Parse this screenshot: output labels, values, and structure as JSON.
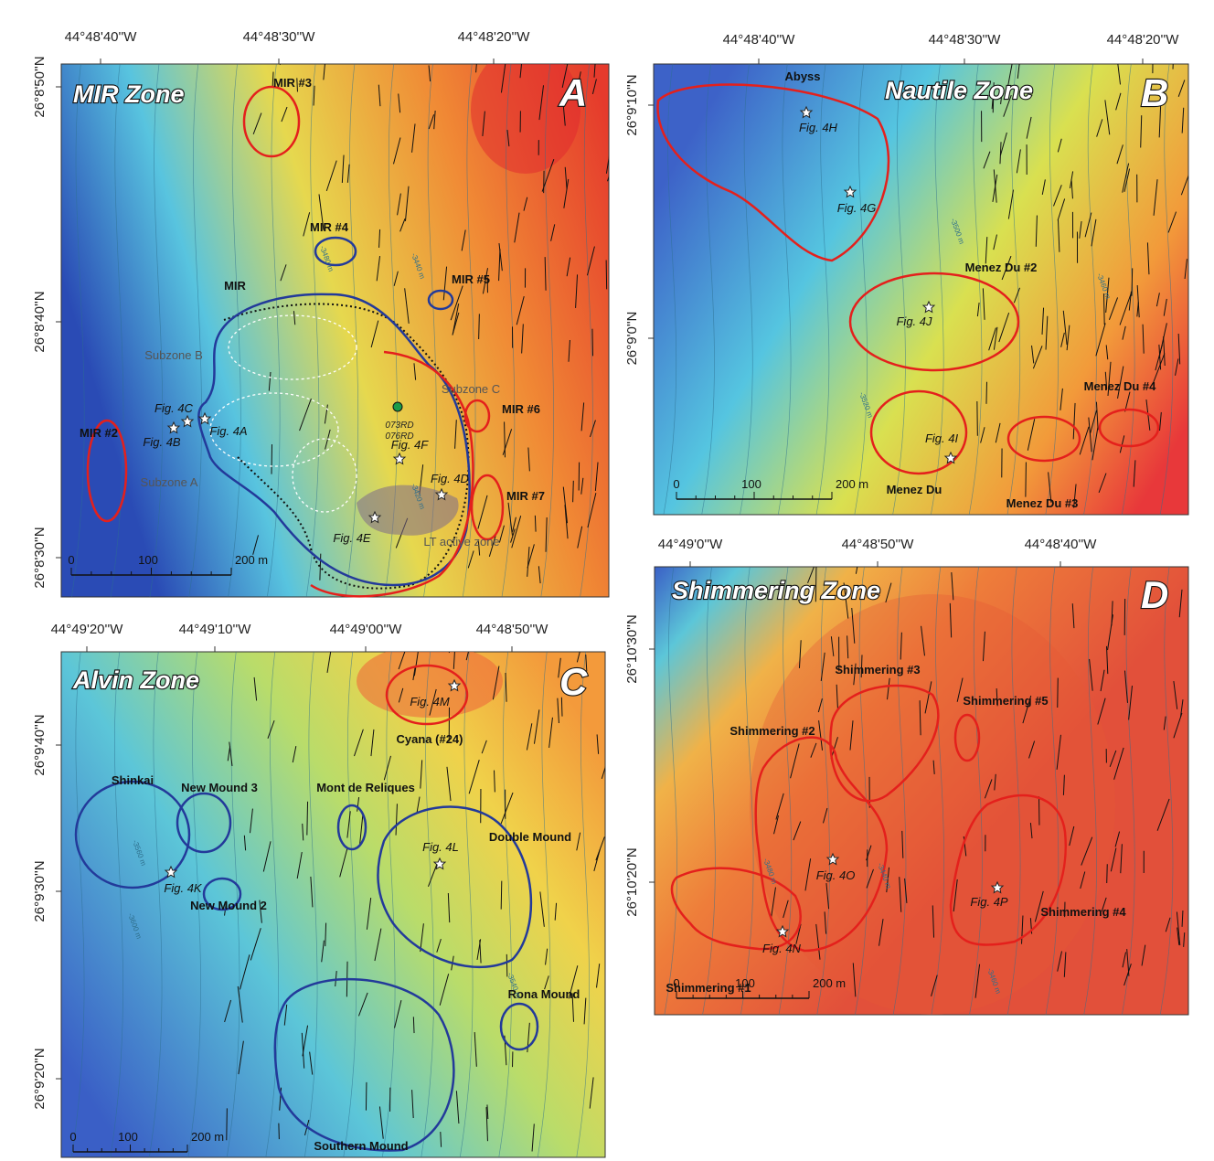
{
  "panels": [
    {
      "zone": "MIR Zone",
      "letter": "A",
      "lon_labels": [
        "44°48'40''W",
        "44°48'30''W",
        "44°48'20''W"
      ],
      "lat_labels": [
        "26°8'50''N",
        "26°8'40''N",
        "26°8'30''N"
      ],
      "features": [
        "MIR #3",
        "MIR #4",
        "MIR #5",
        "MIR",
        "MIR #6",
        "MIR #7",
        "MIR #2"
      ],
      "notes": [
        "Subzone B",
        "Subzone A",
        "Subzone C",
        "LT active zone",
        "073RD",
        "076RD"
      ],
      "figures": [
        "Fig. 4C",
        "Fig. 4B",
        "Fig. 4A",
        "Fig. 4F",
        "Fig. 4D",
        "Fig. 4E"
      ],
      "contours": [
        "-3480 m",
        "-3440 m",
        "-3420 m"
      ],
      "scale": [
        "0",
        "100",
        "200 m"
      ]
    },
    {
      "zone": "Nautile Zone",
      "letter": "B",
      "lon_labels": [
        "44°48'40''W",
        "44°48'30''W",
        "44°48'20''W"
      ],
      "lat_labels": [
        "26°9'10''N",
        "26°9'0''N"
      ],
      "features": [
        "Abyss",
        "Menez Du #2",
        "Menez Du #4",
        "Menez Du #3",
        "Menez Du"
      ],
      "notes": [],
      "figures": [
        "Fig. 4H",
        "Fig. 4G",
        "Fig. 4J",
        "Fig. 4I"
      ],
      "contours": [
        "-3500 m",
        "-3520 m",
        "-3460 m"
      ],
      "scale": [
        "0",
        "100",
        "200 m"
      ]
    },
    {
      "zone": "Alvin Zone",
      "letter": "C",
      "lon_labels": [
        "44°49'20''W",
        "44°49'10''W",
        "44°49'00''W",
        "44°48'50''W"
      ],
      "lat_labels": [
        "26°9'40''N",
        "26°9'30''N",
        "26°9'20''N"
      ],
      "features": [
        "Shinkai",
        "New Mound 3",
        "New Mound 2",
        "Mont de Reliques",
        "Double Mound",
        "Cyana (#24)",
        "Rona Mound",
        "Southern Mound"
      ],
      "notes": [],
      "figures": [
        "Fig. 4M",
        "Fig. 4L",
        "Fig. 4K"
      ],
      "contours": [
        "-3560 m",
        "-3600 m",
        "-3540 m"
      ],
      "scale": [
        "0",
        "100",
        "200 m"
      ]
    },
    {
      "zone": "Shimmering Zone",
      "letter": "D",
      "lon_labels": [
        "44°49'0''W",
        "44°48'50''W",
        "44°48'40''W"
      ],
      "lat_labels": [
        "26°10'30''N",
        "26°10'20''N"
      ],
      "features": [
        "Shimmering #3",
        "Shimmering #5",
        "Shimmering #2",
        "Shimmering #1",
        "Shimmering #4"
      ],
      "notes": [],
      "figures": [
        "Fig. 4O",
        "Fig. 4P",
        "Fig. 4N"
      ],
      "contours": [
        "-3480 m",
        "-3440 m",
        "-3460 m"
      ],
      "scale": [
        "0",
        "100",
        "200 m"
      ]
    }
  ]
}
